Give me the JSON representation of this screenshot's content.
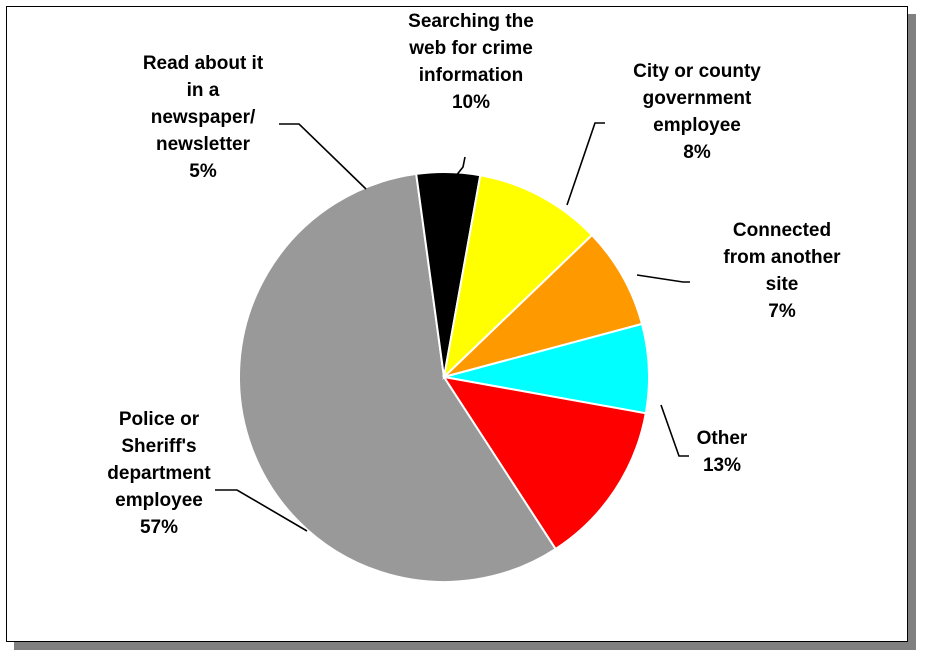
{
  "chart_data": {
    "type": "pie",
    "title": "",
    "slices": [
      {
        "lines": [
          "Police or",
          "Sheriff's",
          "department",
          "employee"
        ],
        "pct_label": "57%",
        "value": 57,
        "color": "#999999"
      },
      {
        "lines": [
          "Read about it",
          "in a",
          "newspaper/",
          "newsletter"
        ],
        "pct_label": "5%",
        "value": 5,
        "color": "#000000"
      },
      {
        "lines": [
          "Searching the",
          "web for crime",
          "information"
        ],
        "pct_label": "10%",
        "value": 10,
        "color": "#ffff00"
      },
      {
        "lines": [
          "City or county",
          "government",
          "employee"
        ],
        "pct_label": "8%",
        "value": 8,
        "color": "#ff9900"
      },
      {
        "lines": [
          "Connected",
          "from another",
          "site"
        ],
        "pct_label": "7%",
        "value": 7,
        "color": "#00ffff"
      },
      {
        "lines": [
          "Other"
        ],
        "pct_label": "13%",
        "value": 13,
        "color": "#ff0000"
      }
    ]
  }
}
